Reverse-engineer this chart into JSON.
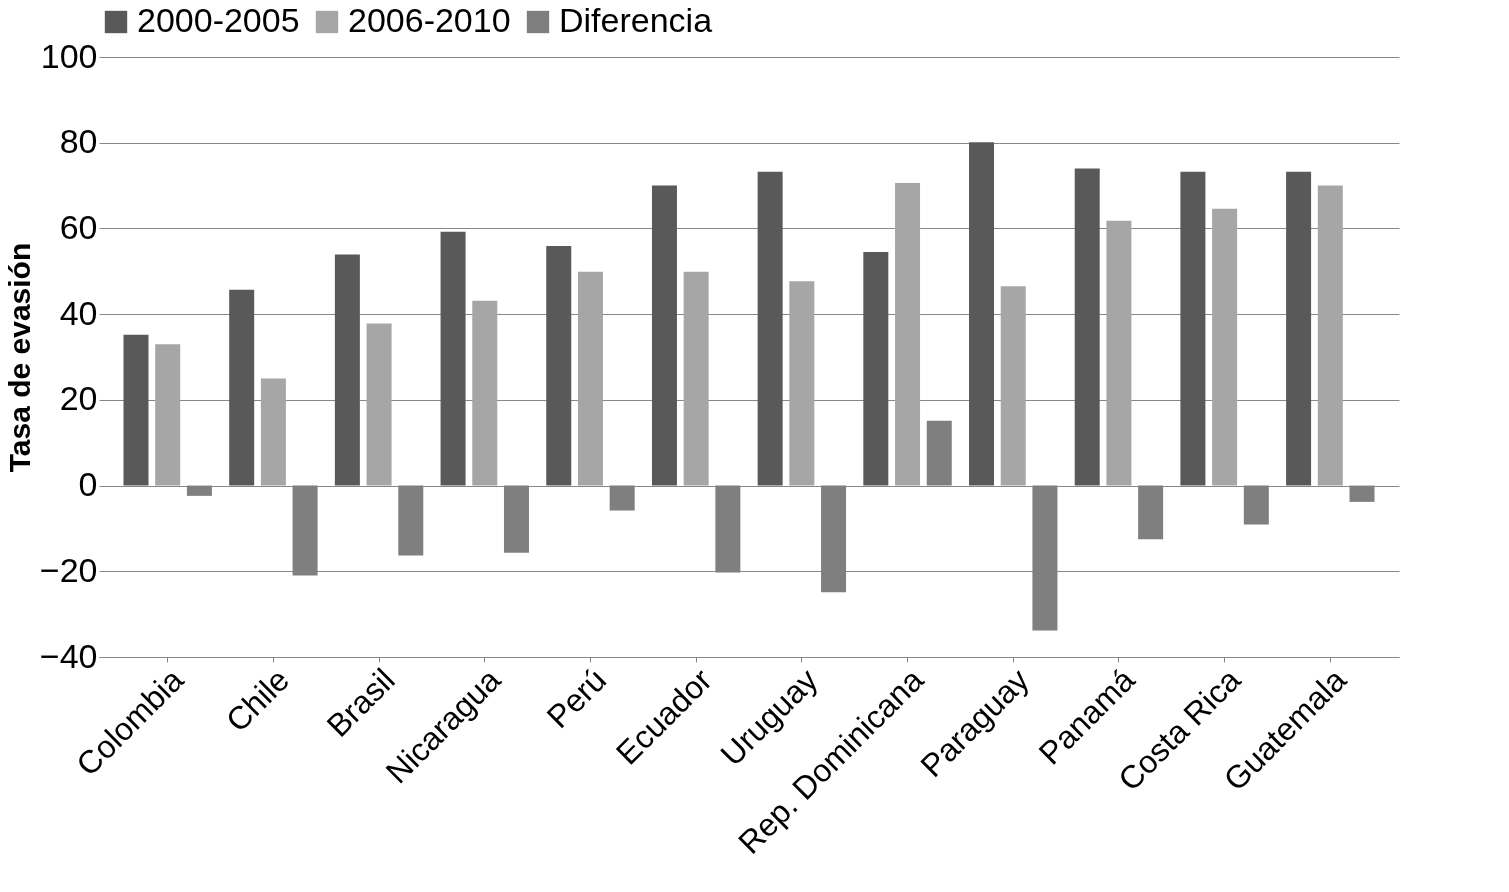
{
  "chart_data": {
    "type": "bar",
    "ylabel": "Tasa de evasión",
    "categories": [
      "Colombia",
      "Chile",
      "Brasil",
      "Nicaragua",
      "Perú",
      "Ecuador",
      "Uruguay",
      "Rep. Dominicana",
      "Paraguay",
      "Panamá",
      "Costa Rica",
      "Guatemala"
    ],
    "series": [
      {
        "name": "2000-2005",
        "color": "#595959",
        "values": [
          35.2,
          45.7,
          53.9,
          59.2,
          55.9,
          70,
          73.2,
          54.5,
          80.1,
          74,
          73.2,
          73.2
        ]
      },
      {
        "name": "2006-2010",
        "color": "#a6a6a6",
        "values": [
          33,
          25,
          37.8,
          43.1,
          49.9,
          49.9,
          47.7,
          70.6,
          46.5,
          61.8,
          64.6,
          70
        ]
      },
      {
        "name": "Diferencia",
        "color": "#7f7f7f",
        "values": [
          -2.4,
          -21,
          -16.3,
          -15.7,
          -5.8,
          -20.3,
          -24.9,
          15.1,
          -33.8,
          -12.5,
          -9.1,
          -3.8
        ]
      }
    ],
    "ylim": [
      -40,
      100
    ],
    "yticks": [
      -40,
      -20,
      0,
      20,
      40,
      60,
      80,
      100
    ],
    "grid": "y",
    "legend": "top"
  }
}
